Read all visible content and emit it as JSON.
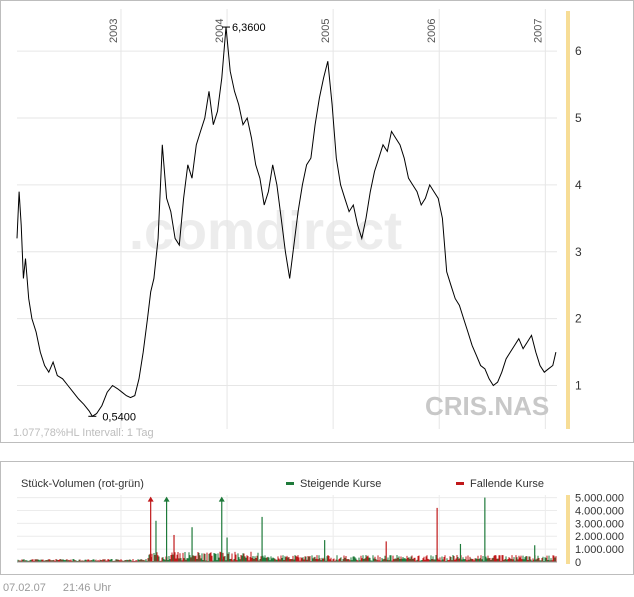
{
  "chart_data": [
    {
      "type": "line",
      "symbol": "CRIS.NAS",
      "watermark": ".comdirect",
      "subtitle": "1.077,78%HL Intervall: 1 Tag",
      "x_ticks": [
        "2003",
        "2004",
        "2005",
        "2006",
        "2007"
      ],
      "y_ticks": [
        1,
        2,
        3,
        4,
        5,
        6
      ],
      "ylim": [
        0.35,
        6.6
      ],
      "xlim": [
        2002.02,
        2007.11
      ],
      "grid": true,
      "max_label": "6,3600",
      "min_label": "0,5400",
      "max_point": [
        2003.99,
        6.36
      ],
      "min_point": [
        2002.73,
        0.54
      ],
      "x": [
        2002.02,
        2002.04,
        2002.06,
        2002.08,
        2002.1,
        2002.13,
        2002.16,
        2002.2,
        2002.24,
        2002.28,
        2002.32,
        2002.36,
        2002.4,
        2002.45,
        2002.5,
        2002.55,
        2002.6,
        2002.65,
        2002.7,
        2002.73,
        2002.77,
        2002.82,
        2002.87,
        2002.92,
        2002.97,
        2003.01,
        2003.05,
        2003.09,
        2003.13,
        2003.17,
        2003.21,
        2003.25,
        2003.28,
        2003.31,
        2003.35,
        2003.39,
        2003.43,
        2003.47,
        2003.51,
        2003.55,
        2003.59,
        2003.63,
        2003.67,
        2003.71,
        2003.75,
        2003.79,
        2003.83,
        2003.87,
        2003.91,
        2003.95,
        2003.99,
        2004.03,
        2004.07,
        2004.11,
        2004.15,
        2004.19,
        2004.23,
        2004.27,
        2004.31,
        2004.35,
        2004.39,
        2004.43,
        2004.47,
        2004.51,
        2004.55,
        2004.59,
        2004.63,
        2004.67,
        2004.71,
        2004.75,
        2004.79,
        2004.83,
        2004.87,
        2004.91,
        2004.95,
        2004.99,
        2005.03,
        2005.07,
        2005.11,
        2005.15,
        2005.19,
        2005.23,
        2005.27,
        2005.31,
        2005.35,
        2005.39,
        2005.43,
        2005.47,
        2005.51,
        2005.55,
        2005.59,
        2005.63,
        2005.67,
        2005.71,
        2005.75,
        2005.79,
        2005.83,
        2005.87,
        2005.91,
        2005.95,
        2005.99,
        2006.03,
        2006.07,
        2006.11,
        2006.15,
        2006.19,
        2006.23,
        2006.27,
        2006.31,
        2006.35,
        2006.39,
        2006.43,
        2006.47,
        2006.51,
        2006.55,
        2006.59,
        2006.63,
        2006.67,
        2006.71,
        2006.75,
        2006.79,
        2006.83,
        2006.87,
        2006.91,
        2006.95,
        2006.99,
        2007.03,
        2007.07,
        2007.1
      ],
      "y": [
        3.2,
        3.9,
        3.4,
        2.6,
        2.9,
        2.3,
        2.0,
        1.8,
        1.5,
        1.3,
        1.2,
        1.35,
        1.15,
        1.1,
        1.0,
        0.9,
        0.8,
        0.72,
        0.62,
        0.54,
        0.58,
        0.7,
        0.9,
        1.0,
        0.95,
        0.9,
        0.85,
        0.82,
        0.85,
        1.1,
        1.5,
        2.0,
        2.4,
        2.6,
        3.2,
        4.6,
        3.8,
        3.6,
        3.2,
        3.1,
        3.8,
        4.3,
        4.1,
        4.6,
        4.8,
        5.0,
        5.4,
        4.9,
        5.1,
        5.6,
        6.36,
        5.7,
        5.4,
        5.2,
        4.9,
        5.0,
        4.7,
        4.3,
        4.1,
        3.7,
        3.9,
        4.3,
        4.0,
        3.5,
        3.0,
        2.6,
        3.1,
        3.6,
        4.0,
        4.3,
        4.4,
        4.9,
        5.3,
        5.6,
        5.85,
        5.2,
        4.4,
        4.0,
        3.8,
        3.6,
        3.7,
        3.4,
        3.2,
        3.5,
        3.9,
        4.2,
        4.4,
        4.6,
        4.5,
        4.8,
        4.7,
        4.6,
        4.4,
        4.1,
        4.0,
        3.9,
        3.7,
        3.8,
        4.0,
        3.9,
        3.8,
        3.5,
        2.7,
        2.5,
        2.3,
        2.2,
        2.0,
        1.8,
        1.6,
        1.45,
        1.3,
        1.25,
        1.1,
        1.0,
        1.05,
        1.2,
        1.4,
        1.5,
        1.6,
        1.7,
        1.55,
        1.65,
        1.75,
        1.5,
        1.3,
        1.2,
        1.25,
        1.3,
        1.5
      ]
    },
    {
      "type": "bar",
      "title": "Stück-Volumen (rot-grün)",
      "legend": [
        {
          "name": "Steigende Kurse",
          "color": "#1e7a3a"
        },
        {
          "name": "Fallende Kurse",
          "color": "#c0181a"
        }
      ],
      "y_ticks": [
        "0",
        "1.000.000",
        "2.000.000",
        "3.000.000",
        "4.000.000",
        "5.000.000"
      ],
      "y_tick_values": [
        0,
        1000000,
        2000000,
        3000000,
        4000000,
        5000000
      ],
      "ylim": [
        0,
        5200000
      ],
      "spikes": [
        {
          "x": 2003.28,
          "value": 5000000,
          "color": "#c0181a",
          "clipped": true
        },
        {
          "x": 2003.33,
          "value": 3200000,
          "color": "#1e7a3a",
          "clipped": false
        },
        {
          "x": 2003.43,
          "value": 5000000,
          "color": "#1e7a3a",
          "clipped": true
        },
        {
          "x": 2003.5,
          "value": 2100000,
          "color": "#c0181a",
          "clipped": false
        },
        {
          "x": 2003.67,
          "value": 2700000,
          "color": "#1e7a3a",
          "clipped": false
        },
        {
          "x": 2003.95,
          "value": 5000000,
          "color": "#1e7a3a",
          "clipped": true
        },
        {
          "x": 2004.0,
          "value": 1900000,
          "color": "#1e7a3a",
          "clipped": false
        },
        {
          "x": 2004.33,
          "value": 3500000,
          "color": "#1e7a3a",
          "clipped": false
        },
        {
          "x": 2004.92,
          "value": 1700000,
          "color": "#1e7a3a",
          "clipped": false
        },
        {
          "x": 2005.5,
          "value": 1600000,
          "color": "#c0181a",
          "clipped": false
        },
        {
          "x": 2005.98,
          "value": 4200000,
          "color": "#c0181a",
          "clipped": false
        },
        {
          "x": 2006.2,
          "value": 1400000,
          "color": "#1e7a3a",
          "clipped": false
        },
        {
          "x": 2006.43,
          "value": 5000000,
          "color": "#1e7a3a",
          "clipped": false
        },
        {
          "x": 2006.9,
          "value": 1300000,
          "color": "#1e7a3a",
          "clipped": false
        }
      ]
    }
  ],
  "footer": {
    "date": "07.02.07",
    "time": "21:46 Uhr"
  }
}
